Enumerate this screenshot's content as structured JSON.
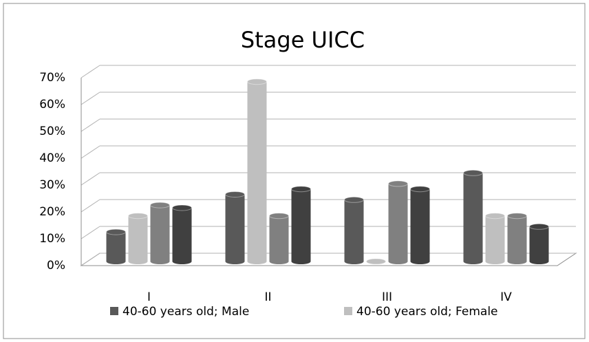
{
  "chart_data": {
    "type": "bar3d",
    "title": "Stage UICC",
    "categories": [
      "I",
      "II",
      "III",
      "IV"
    ],
    "series": [
      {
        "name": "40-60 years old; Male",
        "color": "#595959",
        "values": [
          11,
          25,
          23,
          33
        ]
      },
      {
        "name": "40-60 years old; Female",
        "color": "#bfbfbf",
        "values": [
          17,
          67,
          0,
          17
        ]
      },
      {
        "color": "#808080",
        "values": [
          21,
          17,
          29,
          17
        ]
      },
      {
        "color": "#404040",
        "values": [
          20,
          27,
          27,
          13
        ]
      }
    ],
    "ylim": [
      0,
      70
    ],
    "yticks": [
      {
        "value": 0,
        "label": "0%"
      },
      {
        "value": 10,
        "label": "10%"
      },
      {
        "value": 20,
        "label": "20%"
      },
      {
        "value": 30,
        "label": "30%"
      },
      {
        "value": 40,
        "label": "40%"
      },
      {
        "value": 50,
        "label": "50%"
      },
      {
        "value": 60,
        "label": "60%"
      },
      {
        "value": 70,
        "label": "70%"
      }
    ],
    "grid": true
  }
}
